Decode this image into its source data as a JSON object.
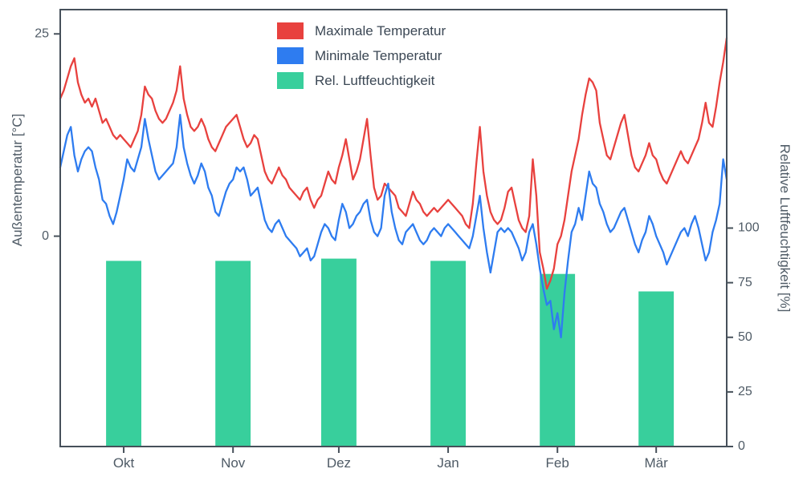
{
  "figure": {
    "background": "#ffffff",
    "spine_color": "#46505a",
    "tick_color": "#4f5b66",
    "label_color": "#4f5b66",
    "legend_text_color": "#3b4754"
  },
  "chart_data": {
    "type": "line+bar",
    "title": "",
    "x_tick_labels": [
      "Okt",
      "Nov",
      "Dez",
      "Jan",
      "Feb",
      "Mär"
    ],
    "x_tick_days": [
      18,
      49,
      79,
      110,
      141,
      169
    ],
    "left_axis": {
      "label": "Außentemperatur [°C]",
      "ticks": [
        25,
        0
      ],
      "range": [
        -26,
        28
      ]
    },
    "right_axis": {
      "label": "Relative Luftfeuchtigkeit [%]",
      "ticks": [
        0,
        25,
        50,
        75,
        100
      ],
      "range": [
        0,
        200
      ]
    },
    "legend": {
      "position": "upper center"
    },
    "series": [
      {
        "name": "Maximale Temperatur",
        "id": "max-temp",
        "type": "line",
        "axis": "left",
        "color": "#e8413e",
        "values": [
          17.0,
          18.0,
          19.5,
          21.0,
          22.0,
          19.0,
          17.5,
          16.5,
          17.0,
          16.0,
          17.0,
          15.5,
          14.0,
          14.5,
          13.5,
          12.5,
          12.0,
          12.5,
          12.0,
          11.5,
          11.0,
          12.0,
          13.0,
          15.0,
          18.5,
          17.5,
          17.0,
          15.5,
          14.5,
          14.0,
          14.5,
          15.5,
          16.5,
          18.0,
          21.0,
          17.0,
          15.0,
          13.5,
          13.0,
          13.5,
          14.5,
          13.5,
          12.0,
          11.0,
          10.5,
          11.5,
          12.5,
          13.5,
          14.0,
          14.5,
          15.0,
          13.5,
          12.0,
          11.0,
          11.5,
          12.5,
          12.0,
          10.0,
          8.0,
          7.0,
          6.5,
          7.5,
          8.5,
          7.5,
          7.0,
          6.0,
          5.5,
          5.0,
          4.5,
          5.5,
          6.0,
          4.5,
          3.5,
          4.5,
          5.0,
          6.5,
          8.0,
          7.0,
          6.5,
          8.5,
          10.0,
          12.0,
          9.5,
          7.0,
          8.0,
          9.5,
          12.0,
          14.5,
          10.0,
          6.0,
          4.5,
          5.0,
          6.5,
          6.0,
          5.5,
          5.0,
          3.5,
          3.0,
          2.5,
          4.0,
          5.5,
          4.5,
          4.0,
          3.0,
          2.5,
          3.0,
          3.5,
          3.0,
          3.5,
          4.0,
          4.5,
          4.0,
          3.5,
          3.0,
          2.5,
          1.5,
          1.0,
          4.0,
          9.0,
          13.5,
          8.0,
          5.0,
          3.0,
          2.0,
          1.5,
          2.0,
          3.5,
          5.5,
          6.0,
          4.0,
          2.0,
          1.0,
          0.5,
          2.5,
          9.5,
          5.0,
          -2.0,
          -4.0,
          -6.5,
          -5.5,
          -4.0,
          -1.0,
          0.0,
          2.0,
          5.0,
          8.0,
          10.0,
          12.0,
          15.0,
          17.5,
          19.5,
          19.0,
          18.0,
          14.0,
          12.0,
          10.0,
          9.5,
          11.0,
          12.5,
          14.0,
          15.0,
          12.5,
          10.0,
          8.5,
          8.0,
          9.0,
          10.0,
          11.5,
          10.0,
          9.5,
          8.0,
          7.0,
          6.5,
          7.5,
          8.5,
          9.5,
          10.5,
          9.5,
          9.0,
          10.0,
          11.0,
          12.0,
          14.0,
          16.5,
          14.0,
          13.5,
          16.0,
          19.0,
          21.5,
          24.5
        ]
      },
      {
        "name": "Minimale Temperatur",
        "id": "min-temp",
        "type": "line",
        "axis": "left",
        "color": "#2e7cf0",
        "values": [
          8.5,
          10.5,
          12.5,
          13.5,
          10.0,
          8.0,
          9.5,
          10.5,
          11.0,
          10.5,
          8.5,
          7.0,
          4.5,
          4.0,
          2.5,
          1.5,
          3.0,
          5.0,
          7.0,
          9.5,
          8.5,
          8.0,
          9.5,
          11.0,
          14.5,
          12.0,
          10.0,
          8.0,
          7.0,
          7.5,
          8.0,
          8.5,
          9.0,
          11.0,
          15.0,
          11.0,
          9.0,
          7.5,
          6.5,
          7.5,
          9.0,
          8.0,
          6.0,
          5.0,
          3.0,
          2.5,
          4.0,
          5.5,
          6.5,
          7.0,
          8.5,
          8.0,
          8.5,
          7.0,
          5.0,
          5.5,
          6.0,
          4.0,
          2.0,
          1.0,
          0.5,
          1.5,
          2.0,
          1.0,
          0.0,
          -0.5,
          -1.0,
          -1.5,
          -2.5,
          -2.0,
          -1.5,
          -3.0,
          -2.5,
          -1.0,
          0.5,
          1.5,
          1.0,
          0.0,
          -0.5,
          2.0,
          4.0,
          3.0,
          1.0,
          1.5,
          2.5,
          3.0,
          4.0,
          4.5,
          2.0,
          0.5,
          0.0,
          1.0,
          5.0,
          6.5,
          3.0,
          1.0,
          -0.5,
          -1.0,
          0.5,
          1.0,
          1.5,
          0.5,
          -0.5,
          -1.0,
          -0.5,
          0.5,
          1.0,
          0.5,
          0.0,
          1.0,
          1.5,
          1.0,
          0.5,
          0.0,
          -0.5,
          -1.0,
          -1.5,
          0.0,
          2.5,
          5.0,
          1.0,
          -2.0,
          -4.5,
          -2.0,
          0.5,
          1.0,
          0.5,
          1.0,
          0.5,
          -0.5,
          -1.5,
          -3.0,
          -2.0,
          0.5,
          1.5,
          -1.0,
          -4.0,
          -6.5,
          -8.5,
          -8.0,
          -11.5,
          -9.5,
          -12.5,
          -7.0,
          -3.0,
          0.5,
          1.5,
          3.5,
          2.0,
          5.0,
          8.0,
          6.5,
          6.0,
          4.0,
          3.0,
          1.5,
          0.5,
          1.0,
          2.0,
          3.0,
          3.5,
          2.0,
          0.5,
          -1.0,
          -2.0,
          -0.5,
          0.5,
          2.5,
          1.5,
          0.0,
          -1.0,
          -2.0,
          -3.5,
          -2.5,
          -1.5,
          -0.5,
          0.5,
          1.0,
          0.0,
          1.5,
          2.5,
          1.0,
          -1.0,
          -3.0,
          -2.0,
          0.5,
          2.0,
          4.0,
          9.5,
          7.0
        ]
      },
      {
        "name": "Rel. Luftfeuchtigkeit",
        "id": "humidity",
        "type": "bar",
        "axis": "right",
        "color": "#38cf9c",
        "categories": [
          "Okt",
          "Nov",
          "Dez",
          "Jan",
          "Feb",
          "Mär"
        ],
        "values": [
          85,
          85,
          86,
          85,
          79,
          71
        ],
        "bar_width_days": 10
      }
    ]
  }
}
